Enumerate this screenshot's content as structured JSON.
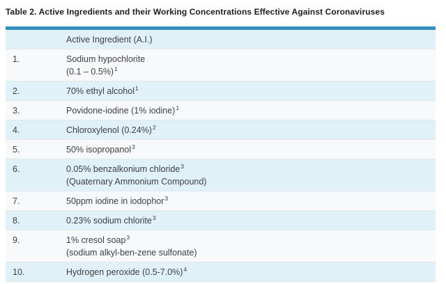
{
  "title": "Table 2. Active Ingredients and their Working Concentrations Effective Against Coronaviruses",
  "table": {
    "header": {
      "number_col": "",
      "ingredient_col": "Active Ingredient (A.I.)"
    },
    "rows": [
      {
        "num": "1.",
        "lines": [
          {
            "text": "Sodium hypochlorite",
            "sup": ""
          },
          {
            "text": "(0.1 – 0.5%)",
            "sup": "1"
          }
        ]
      },
      {
        "num": "2.",
        "lines": [
          {
            "text": "70% ethyl alcohol",
            "sup": "1"
          }
        ]
      },
      {
        "num": "3.",
        "lines": [
          {
            "text": "Povidone-iodine (1% iodine)",
            "sup": "1"
          }
        ]
      },
      {
        "num": "4.",
        "lines": [
          {
            "text": "Chloroxylenol (0.24%)",
            "sup": "2"
          }
        ]
      },
      {
        "num": "5.",
        "lines": [
          {
            "text": "50% isopropanol",
            "sup": "3"
          }
        ]
      },
      {
        "num": "6.",
        "lines": [
          {
            "text": "0.05% benzalkonium chloride",
            "sup": "3"
          },
          {
            "text": "(Quaternary Ammonium Compound)",
            "sup": ""
          }
        ]
      },
      {
        "num": "7.",
        "lines": [
          {
            "text": "50ppm iodine in iodophor",
            "sup": "3"
          }
        ]
      },
      {
        "num": "8.",
        "lines": [
          {
            "text": "0.23% sodium chlorite",
            "sup": "3"
          }
        ]
      },
      {
        "num": "9.",
        "lines": [
          {
            "text": "1% cresol soap",
            "sup": "3"
          },
          {
            "text": "(sodium alkyl-ben-zene sulfonate)",
            "sup": ""
          }
        ]
      },
      {
        "num": "10.",
        "lines": [
          {
            "text": "Hydrogen peroxide (0.5-7.0%)",
            "sup": "4"
          }
        ]
      }
    ],
    "colors": {
      "accent_bar": "#3590c0",
      "row_alt": "#e1f1f8",
      "row_plain": "#f8f9fa",
      "divider": "#e2e7ea",
      "text": "#3c4043",
      "title_text": "#1c1d1f"
    }
  }
}
